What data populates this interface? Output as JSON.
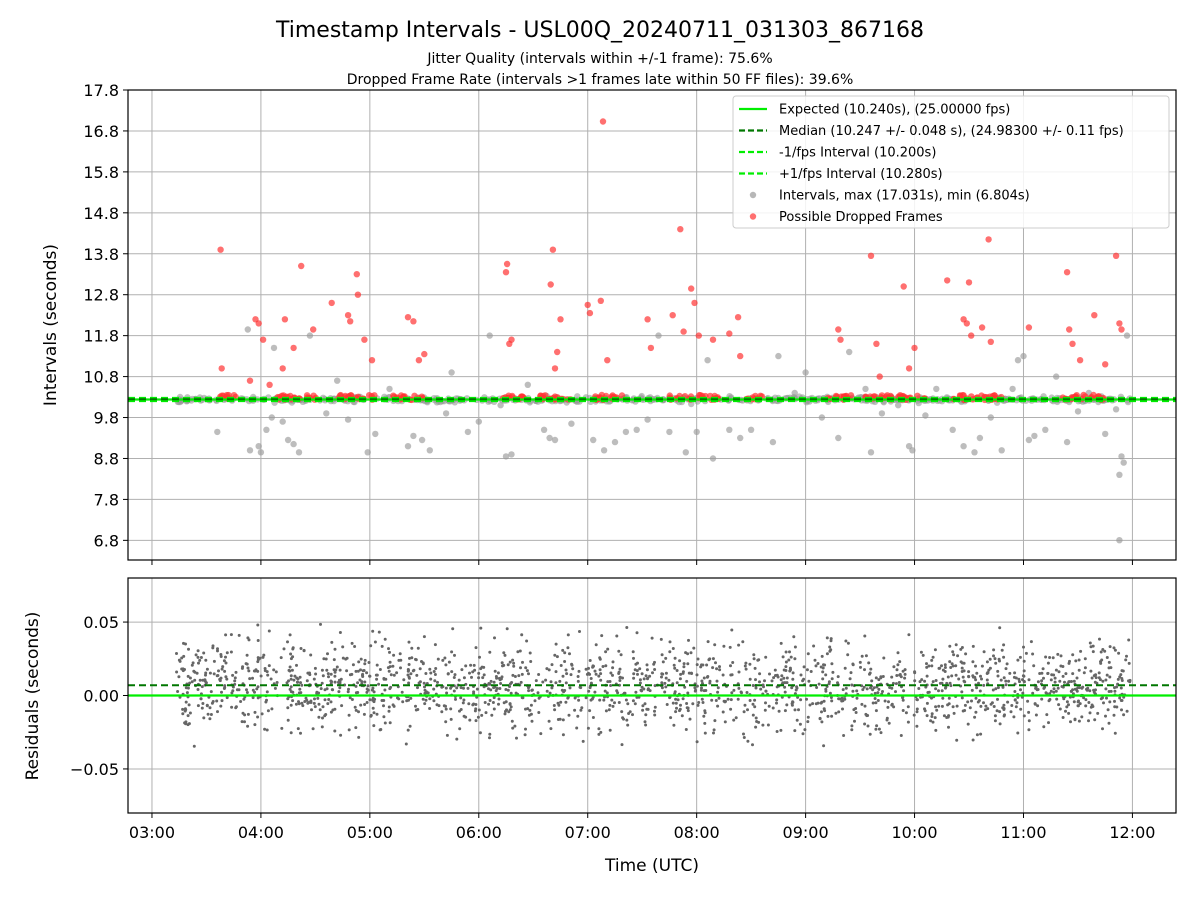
{
  "chart_data": {
    "type": "scatter",
    "title": "Timestamp Intervals - USL00Q_20240711_031303_867168",
    "subtitle_1": "Jitter Quality (intervals within +/-1 frame): 75.6%",
    "subtitle_2": "Dropped Frame Rate (intervals >1 frames late within 50 FF files): 39.6%",
    "xlabel": "Time (UTC)",
    "x_tick_labels": [
      "03:00",
      "04:00",
      "05:00",
      "06:00",
      "07:00",
      "08:00",
      "09:00",
      "10:00",
      "11:00",
      "12:00"
    ],
    "x_tick_hours": [
      3,
      4,
      5,
      6,
      7,
      8,
      9,
      10,
      11,
      12
    ],
    "xlim_hours": [
      2.78,
      12.4
    ],
    "top_panel": {
      "ylabel": "Intervals (seconds)",
      "ylim": [
        6.32,
        17.8
      ],
      "y_tick_labels": [
        "6.8",
        "7.8",
        "8.8",
        "9.8",
        "10.8",
        "11.8",
        "12.8",
        "13.8",
        "14.8",
        "15.8",
        "16.8",
        "17.8"
      ],
      "y_ticks": [
        6.8,
        7.8,
        8.8,
        9.8,
        10.8,
        11.8,
        12.8,
        13.8,
        14.8,
        15.8,
        16.8,
        17.8
      ],
      "grid": true,
      "legend_position": "top-right",
      "legend": [
        {
          "label": "Expected (10.240s), (25.00000 fps)",
          "kind": "line",
          "color": "#00ee00",
          "dashed": false
        },
        {
          "label": "Median (10.247 +/- 0.048 s), (24.98300 +/- 0.11 fps)",
          "kind": "line",
          "color": "#007700",
          "dashed": true
        },
        {
          "label": "-1/fps Interval (10.200s)",
          "kind": "line",
          "color": "#00ee00",
          "dashed": true
        },
        {
          "label": "+1/fps Interval (10.280s)",
          "kind": "line",
          "color": "#00ee00",
          "dashed": true
        },
        {
          "label": "Intervals, max (17.031s), min (6.804s)",
          "kind": "dot",
          "color": "#999999"
        },
        {
          "label": "Possible Dropped Frames",
          "kind": "dot",
          "color": "#ff3333"
        }
      ],
      "expected": 10.24,
      "median": 10.247,
      "minus_interval": 10.2,
      "plus_interval": 10.28,
      "intervals_sample": [
        [
          3.25,
          10.24
        ],
        [
          3.4,
          10.25
        ],
        [
          3.6,
          9.45
        ],
        [
          3.88,
          11.95
        ],
        [
          3.9,
          9.0
        ],
        [
          3.98,
          9.1
        ],
        [
          4.0,
          8.95
        ],
        [
          4.05,
          9.5
        ],
        [
          4.1,
          9.8
        ],
        [
          4.12,
          11.5
        ],
        [
          4.2,
          9.7
        ],
        [
          4.25,
          9.25
        ],
        [
          4.3,
          9.15
        ],
        [
          4.35,
          8.95
        ],
        [
          4.45,
          11.8
        ],
        [
          4.6,
          9.9
        ],
        [
          4.7,
          10.7
        ],
        [
          4.8,
          9.75
        ],
        [
          4.9,
          10.3
        ],
        [
          4.98,
          8.95
        ],
        [
          5.05,
          9.4
        ],
        [
          5.18,
          10.5
        ],
        [
          5.35,
          9.1
        ],
        [
          5.4,
          9.35
        ],
        [
          5.48,
          9.25
        ],
        [
          5.55,
          9.0
        ],
        [
          5.7,
          9.9
        ],
        [
          5.75,
          10.9
        ],
        [
          5.9,
          9.45
        ],
        [
          6.0,
          9.7
        ],
        [
          6.1,
          11.8
        ],
        [
          6.2,
          10.1
        ],
        [
          6.25,
          8.85
        ],
        [
          6.3,
          8.9
        ],
        [
          6.45,
          10.6
        ],
        [
          6.6,
          9.5
        ],
        [
          6.65,
          9.3
        ],
        [
          6.7,
          9.25
        ],
        [
          6.85,
          9.65
        ],
        [
          7.05,
          9.25
        ],
        [
          7.15,
          9.0
        ],
        [
          7.25,
          9.2
        ],
        [
          7.35,
          9.45
        ],
        [
          7.45,
          9.5
        ],
        [
          7.55,
          9.75
        ],
        [
          7.65,
          11.8
        ],
        [
          7.75,
          9.45
        ],
        [
          7.9,
          8.95
        ],
        [
          8.0,
          9.45
        ],
        [
          8.1,
          11.2
        ],
        [
          8.15,
          8.8
        ],
        [
          8.3,
          9.5
        ],
        [
          8.4,
          9.3
        ],
        [
          8.5,
          9.5
        ],
        [
          8.7,
          9.2
        ],
        [
          8.75,
          11.3
        ],
        [
          8.9,
          10.4
        ],
        [
          9.0,
          10.9
        ],
        [
          9.15,
          9.8
        ],
        [
          9.3,
          9.3
        ],
        [
          9.4,
          11.4
        ],
        [
          9.55,
          10.5
        ],
        [
          9.6,
          8.95
        ],
        [
          9.7,
          9.9
        ],
        [
          9.85,
          10.1
        ],
        [
          9.95,
          9.1
        ],
        [
          9.98,
          9.0
        ],
        [
          10.1,
          9.85
        ],
        [
          10.2,
          10.5
        ],
        [
          10.35,
          9.5
        ],
        [
          10.45,
          9.1
        ],
        [
          10.55,
          8.95
        ],
        [
          10.6,
          9.3
        ],
        [
          10.7,
          9.8
        ],
        [
          10.8,
          9.0
        ],
        [
          10.9,
          10.5
        ],
        [
          10.95,
          11.2
        ],
        [
          11.0,
          11.3
        ],
        [
          11.05,
          9.25
        ],
        [
          11.1,
          9.35
        ],
        [
          11.2,
          9.5
        ],
        [
          11.3,
          10.8
        ],
        [
          11.4,
          9.2
        ],
        [
          11.5,
          9.95
        ],
        [
          11.6,
          10.4
        ],
        [
          11.75,
          9.4
        ],
        [
          11.85,
          10.0
        ],
        [
          11.88,
          8.4
        ],
        [
          11.9,
          8.85
        ],
        [
          11.92,
          8.7
        ],
        [
          11.95,
          11.8
        ],
        [
          11.88,
          6.804
        ]
      ],
      "dropped_sample": [
        [
          3.63,
          13.9
        ],
        [
          3.64,
          11.0
        ],
        [
          3.9,
          10.7
        ],
        [
          3.95,
          12.2
        ],
        [
          3.98,
          12.1
        ],
        [
          4.02,
          11.7
        ],
        [
          4.08,
          10.6
        ],
        [
          4.2,
          11.0
        ],
        [
          4.22,
          12.2
        ],
        [
          4.3,
          11.5
        ],
        [
          4.37,
          13.5
        ],
        [
          4.48,
          11.95
        ],
        [
          4.65,
          12.6
        ],
        [
          4.8,
          12.3
        ],
        [
          4.82,
          12.15
        ],
        [
          4.88,
          13.3
        ],
        [
          4.89,
          12.8
        ],
        [
          4.95,
          11.7
        ],
        [
          5.02,
          11.2
        ],
        [
          5.35,
          12.25
        ],
        [
          5.4,
          12.15
        ],
        [
          5.45,
          11.2
        ],
        [
          5.5,
          11.35
        ],
        [
          6.25,
          13.35
        ],
        [
          6.26,
          13.55
        ],
        [
          6.28,
          11.6
        ],
        [
          6.3,
          11.7
        ],
        [
          6.66,
          13.05
        ],
        [
          6.68,
          13.9
        ],
        [
          6.7,
          11.0
        ],
        [
          6.72,
          11.4
        ],
        [
          6.75,
          12.2
        ],
        [
          7.0,
          12.55
        ],
        [
          7.02,
          12.35
        ],
        [
          7.12,
          12.65
        ],
        [
          7.14,
          17.031
        ],
        [
          7.18,
          11.2
        ],
        [
          7.55,
          12.2
        ],
        [
          7.58,
          11.5
        ],
        [
          7.78,
          12.3
        ],
        [
          7.85,
          14.4
        ],
        [
          7.88,
          11.9
        ],
        [
          7.95,
          12.95
        ],
        [
          7.98,
          12.6
        ],
        [
          8.02,
          11.8
        ],
        [
          8.15,
          11.7
        ],
        [
          8.3,
          11.85
        ],
        [
          8.38,
          12.25
        ],
        [
          8.4,
          11.3
        ],
        [
          9.3,
          11.95
        ],
        [
          9.32,
          11.7
        ],
        [
          9.6,
          13.75
        ],
        [
          9.65,
          11.6
        ],
        [
          9.68,
          10.8
        ],
        [
          9.9,
          13.0
        ],
        [
          9.95,
          11.0
        ],
        [
          10.0,
          11.5
        ],
        [
          10.3,
          13.15
        ],
        [
          10.45,
          12.2
        ],
        [
          10.48,
          12.1
        ],
        [
          10.5,
          13.1
        ],
        [
          10.52,
          11.8
        ],
        [
          10.62,
          12.0
        ],
        [
          10.68,
          14.15
        ],
        [
          10.7,
          11.65
        ],
        [
          11.05,
          12.0
        ],
        [
          11.4,
          13.35
        ],
        [
          11.42,
          11.95
        ],
        [
          11.45,
          11.6
        ],
        [
          11.52,
          11.2
        ],
        [
          11.65,
          12.3
        ],
        [
          11.75,
          11.1
        ],
        [
          11.85,
          13.75
        ],
        [
          11.88,
          12.1
        ],
        [
          11.9,
          11.95
        ]
      ]
    },
    "bottom_panel": {
      "ylabel": "Residuals (seconds)",
      "ylim": [
        -0.08,
        0.08
      ],
      "y_tick_labels": [
        "0.05",
        "0.00",
        "−0.05"
      ],
      "y_ticks": [
        0.05,
        0.0,
        -0.05
      ],
      "grid": true,
      "zero_line": 0.0,
      "median_line": 0.007,
      "spread": 0.03
    },
    "data_range_hours": [
      3.22,
      11.98
    ],
    "colors": {
      "expected": "#00ee00",
      "median": "#007700",
      "interval": "#999999",
      "dropped": "#ff3333",
      "residual": "#666666",
      "grid": "#b0b0b0"
    }
  }
}
